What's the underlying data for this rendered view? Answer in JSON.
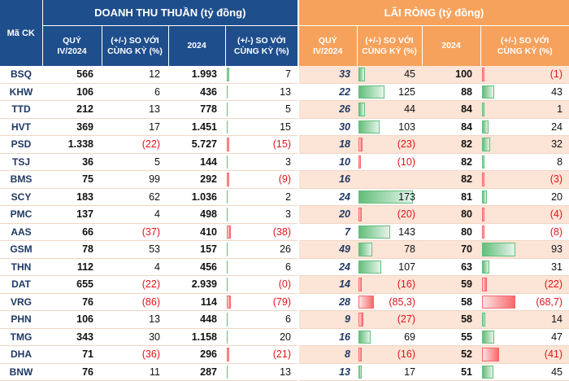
{
  "headers": {
    "mack": "Mã CK",
    "doanh_thu": "DOANH THU THUẦN (tỷ đồng)",
    "lai_rong": "LÃI RÒNG (tỷ đồng)",
    "quy": "QUÝ IV/2024",
    "so_voi_ck": "(+/-) SO VỚI CÙNG KỲ (%)",
    "nam": "2024"
  },
  "colors": {
    "blue_header": "#1f4e8c",
    "orange_header": "#f7a25c",
    "alt_row": "#fce4d6",
    "negative": "#e0141b",
    "bar_green": "#63be7b",
    "bar_red": "#f8696b"
  },
  "rows": [
    {
      "mack": "BSQ",
      "dt_q": "566",
      "dt_q_ck": "12",
      "dt_y": "1.993",
      "dt_y_ck": "7",
      "lr_q": "33",
      "lr_q_ck": "45",
      "lr_y": "100",
      "lr_y_ck": "(1)"
    },
    {
      "mack": "KHW",
      "dt_q": "106",
      "dt_q_ck": "6",
      "dt_y": "436",
      "dt_y_ck": "13",
      "lr_q": "22",
      "lr_q_ck": "125",
      "lr_y": "88",
      "lr_y_ck": "43"
    },
    {
      "mack": "TTD",
      "dt_q": "212",
      "dt_q_ck": "13",
      "dt_y": "778",
      "dt_y_ck": "5",
      "lr_q": "26",
      "lr_q_ck": "44",
      "lr_y": "84",
      "lr_y_ck": "1"
    },
    {
      "mack": "HVT",
      "dt_q": "369",
      "dt_q_ck": "17",
      "dt_y": "1.451",
      "dt_y_ck": "15",
      "lr_q": "30",
      "lr_q_ck": "103",
      "lr_y": "84",
      "lr_y_ck": "24"
    },
    {
      "mack": "PSD",
      "dt_q": "1.338",
      "dt_q_ck": "(22)",
      "dt_y": "5.727",
      "dt_y_ck": "(15)",
      "lr_q": "18",
      "lr_q_ck": "(23)",
      "lr_y": "82",
      "lr_y_ck": "32"
    },
    {
      "mack": "TSJ",
      "dt_q": "36",
      "dt_q_ck": "5",
      "dt_y": "144",
      "dt_y_ck": "3",
      "lr_q": "10",
      "lr_q_ck": "(10)",
      "lr_y": "82",
      "lr_y_ck": "8"
    },
    {
      "mack": "BMS",
      "dt_q": "75",
      "dt_q_ck": "99",
      "dt_y": "292",
      "dt_y_ck": "(9)",
      "lr_q": "16",
      "lr_q_ck": "",
      "lr_y": "82",
      "lr_y_ck": "(3)"
    },
    {
      "mack": "SCY",
      "dt_q": "183",
      "dt_q_ck": "62",
      "dt_y": "1.036",
      "dt_y_ck": "2",
      "lr_q": "24",
      "lr_q_ck": "173",
      "lr_y": "81",
      "lr_y_ck": "20"
    },
    {
      "mack": "PMC",
      "dt_q": "137",
      "dt_q_ck": "4",
      "dt_y": "498",
      "dt_y_ck": "3",
      "lr_q": "20",
      "lr_q_ck": "(20)",
      "lr_y": "80",
      "lr_y_ck": "(4)"
    },
    {
      "mack": "AAS",
      "dt_q": "66",
      "dt_q_ck": "(37)",
      "dt_y": "410",
      "dt_y_ck": "(38)",
      "lr_q": "7",
      "lr_q_ck": "143",
      "lr_y": "80",
      "lr_y_ck": "(8)"
    },
    {
      "mack": "GSM",
      "dt_q": "78",
      "dt_q_ck": "53",
      "dt_y": "157",
      "dt_y_ck": "26",
      "lr_q": "49",
      "lr_q_ck": "78",
      "lr_y": "70",
      "lr_y_ck": "93"
    },
    {
      "mack": "THN",
      "dt_q": "112",
      "dt_q_ck": "4",
      "dt_y": "456",
      "dt_y_ck": "6",
      "lr_q": "24",
      "lr_q_ck": "107",
      "lr_y": "63",
      "lr_y_ck": "31"
    },
    {
      "mack": "DAT",
      "dt_q": "655",
      "dt_q_ck": "(22)",
      "dt_y": "2.939",
      "dt_y_ck": "(0)",
      "lr_q": "14",
      "lr_q_ck": "(16)",
      "lr_y": "59",
      "lr_y_ck": "(22)"
    },
    {
      "mack": "VRG",
      "dt_q": "76",
      "dt_q_ck": "(86)",
      "dt_y": "114",
      "dt_y_ck": "(79)",
      "lr_q": "28",
      "lr_q_ck": "(85,3)",
      "lr_y": "58",
      "lr_y_ck": "(68,7)"
    },
    {
      "mack": "PHN",
      "dt_q": "106",
      "dt_q_ck": "13",
      "dt_y": "448",
      "dt_y_ck": "6",
      "lr_q": "9",
      "lr_q_ck": "(27)",
      "lr_y": "58",
      "lr_y_ck": "14"
    },
    {
      "mack": "TMG",
      "dt_q": "343",
      "dt_q_ck": "30",
      "dt_y": "1.158",
      "dt_y_ck": "20",
      "lr_q": "16",
      "lr_q_ck": "69",
      "lr_y": "55",
      "lr_y_ck": "47"
    },
    {
      "mack": "DHA",
      "dt_q": "71",
      "dt_q_ck": "(36)",
      "dt_y": "296",
      "dt_y_ck": "(21)",
      "lr_q": "8",
      "lr_q_ck": "(16)",
      "lr_y": "52",
      "lr_y_ck": "(41)"
    },
    {
      "mack": "BNW",
      "dt_q": "76",
      "dt_q_ck": "11",
      "dt_y": "287",
      "dt_y_ck": "13",
      "lr_q": "13",
      "lr_q_ck": "17",
      "lr_y": "51",
      "lr_y_ck": "45"
    }
  ],
  "bars": {
    "lr_q_ck": [
      0.12,
      0.45,
      0.12,
      0.37,
      -0.07,
      -0.03,
      0,
      0.95,
      -0.06,
      0.56,
      0.24,
      0.4,
      -0.05,
      -0.27,
      -0.08,
      0.22,
      -0.05,
      0.05
    ],
    "lr_y_ck": [
      -0.01,
      0.2,
      0.01,
      0.1,
      0.13,
      0.03,
      -0.01,
      0.08,
      -0.02,
      -0.03,
      0.55,
      0.12,
      -0.08,
      -0.55,
      0.05,
      0.2,
      -0.28,
      0.19
    ],
    "dt_y_ck": [
      0.01,
      0,
      0,
      0,
      -0.01,
      0,
      -0.01,
      0,
      0,
      -0.05,
      0,
      0,
      0,
      -0.05,
      0,
      0,
      -0.01,
      0
    ]
  }
}
